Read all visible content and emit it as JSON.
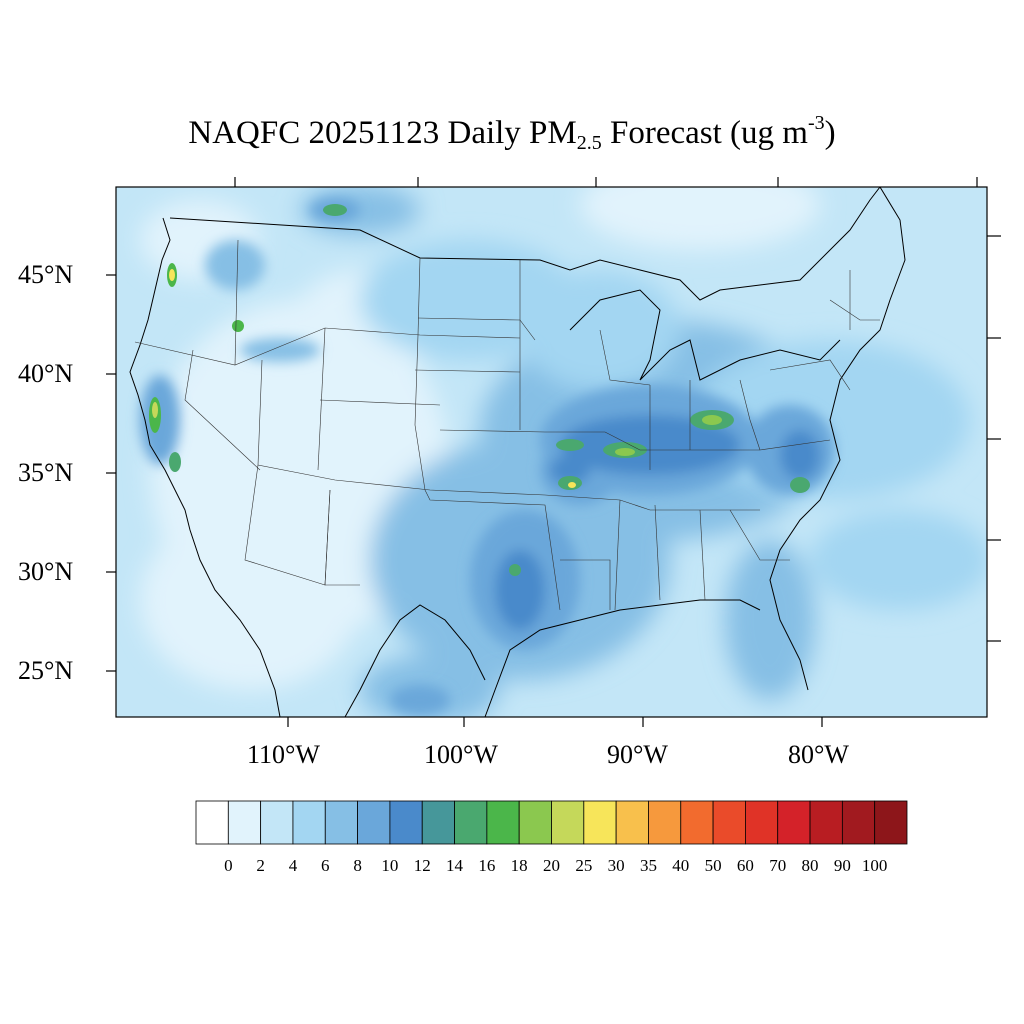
{
  "title": {
    "prefix": "NAQFC 20251123 Daily PM",
    "sub": "2.5",
    "middle": " Forecast (ug m",
    "sup": "-3",
    "suffix": ")"
  },
  "lat_ticks": [
    "45°N",
    "40°N",
    "35°N",
    "30°N",
    "25°N"
  ],
  "lon_ticks": [
    "110°W",
    "100°W",
    "90°W",
    "80°W"
  ],
  "colorbar": {
    "labels": [
      "0",
      "2",
      "4",
      "6",
      "8",
      "10",
      "12",
      "14",
      "16",
      "18",
      "20",
      "25",
      "30",
      "35",
      "40",
      "50",
      "60",
      "70",
      "80",
      "90",
      "100"
    ],
    "colors": [
      "#ffffff",
      "#e1f3fc",
      "#c3e6f7",
      "#a3d6f2",
      "#86bfe5",
      "#6aa7da",
      "#4a8acb",
      "#46979a",
      "#4aa86f",
      "#4bb64a",
      "#8bc84f",
      "#c5d85a",
      "#f7e55a",
      "#f8c04c",
      "#f6993d",
      "#f26b2e",
      "#ea4b2a",
      "#e03327",
      "#d42229",
      "#b81d22",
      "#a11a1f",
      "#8d161a"
    ]
  }
}
